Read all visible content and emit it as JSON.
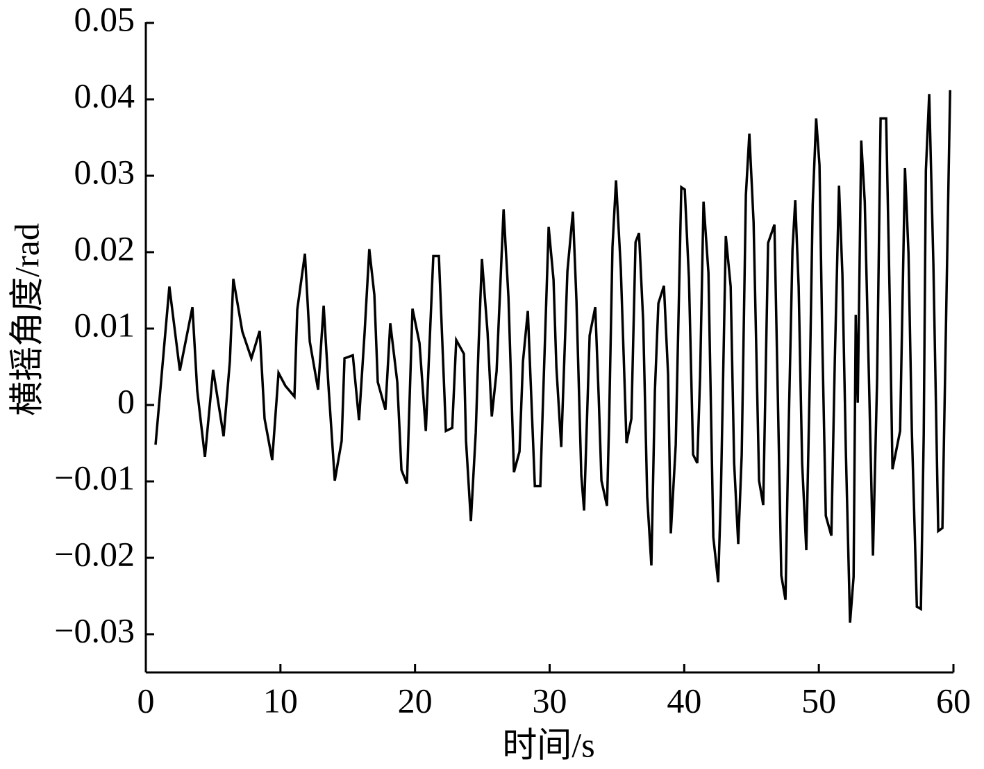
{
  "chart_data": {
    "type": "line",
    "xlabel": "时间/s",
    "ylabel": "横摇角度/rad",
    "color": "#000000",
    "xlim": [
      0,
      60
    ],
    "xticks": [
      0,
      10,
      20,
      30,
      40,
      50,
      60
    ],
    "ylim": [
      -0.035,
      0.05
    ],
    "yticks": [
      {
        "value": -0.03,
        "label": "−0.03"
      },
      {
        "value": -0.02,
        "label": "−0.02"
      },
      {
        "value": -0.01,
        "label": "−0.01"
      },
      0,
      0.01,
      0.02,
      0.03,
      0.04,
      0.05
    ],
    "x": [
      0.72,
      1.75,
      2.53,
      3.46,
      3.82,
      4.39,
      5.0,
      5.78,
      6.24,
      6.5,
      7.17,
      7.84,
      8.46,
      8.82,
      9.39,
      9.86,
      10.37,
      11.04,
      11.25,
      11.82,
      12.18,
      12.8,
      13.21,
      13.57,
      14.04,
      14.55,
      14.76,
      15.38,
      15.84,
      16.25,
      16.6,
      16.98,
      17.23,
      17.8,
      18.16,
      18.68,
      18.99,
      19.4,
      19.81,
      20.33,
      20.8,
      21.36,
      21.77,
      22.29,
      22.76,
      23.06,
      23.63,
      23.79,
      24.15,
      24.51,
      24.72,
      24.97,
      25.39,
      25.7,
      26.06,
      26.58,
      26.94,
      27.35,
      27.76,
      28.02,
      28.38,
      28.9,
      29.31,
      29.51,
      29.93,
      30.29,
      30.5,
      30.86,
      31.32,
      31.73,
      31.99,
      32.35,
      32.56,
      32.97,
      33.39,
      33.64,
      33.85,
      34.26,
      34.42,
      34.67,
      34.93,
      35.29,
      35.5,
      35.71,
      36.07,
      36.38,
      36.64,
      36.95,
      37.25,
      37.56,
      37.82,
      38.08,
      38.49,
      38.8,
      39.0,
      39.37,
      39.78,
      40.04,
      40.35,
      40.66,
      40.97,
      41.18,
      41.43,
      41.8,
      42.16,
      42.52,
      42.72,
      43.09,
      43.45,
      43.71,
      44.01,
      44.27,
      44.58,
      44.84,
      45.15,
      45.56,
      45.87,
      46.23,
      46.7,
      46.96,
      47.21,
      47.52,
      47.73,
      48.04,
      48.25,
      48.5,
      48.76,
      49.07,
      49.33,
      49.54,
      49.8,
      50.05,
      50.26,
      50.52,
      50.93,
      51.19,
      51.5,
      51.75,
      52.01,
      52.32,
      52.58,
      52.74,
      52.89,
      53.15,
      53.41,
      53.72,
      54.02,
      54.33,
      54.59,
      55.0,
      55.26,
      55.47,
      56.04,
      56.4,
      56.66,
      56.91,
      57.28,
      57.58,
      57.79,
      57.95,
      58.2,
      58.51,
      58.87,
      59.18,
      59.75
    ],
    "values": [
      -0.0052,
      0.0155,
      0.0045,
      0.0128,
      0.0019,
      -0.0068,
      0.0046,
      -0.0041,
      0.0057,
      0.0165,
      0.0096,
      0.0061,
      0.0097,
      -0.0018,
      -0.0072,
      0.0042,
      0.0025,
      0.0011,
      0.0125,
      0.0198,
      0.0083,
      0.002,
      0.013,
      0.0025,
      -0.0099,
      -0.0047,
      0.0061,
      0.0065,
      -0.002,
      0.0094,
      0.0204,
      0.0144,
      0.003,
      -0.0006,
      0.0107,
      0.003,
      -0.0085,
      -0.0103,
      0.0126,
      0.0081,
      -0.0034,
      0.0195,
      0.0195,
      -0.0034,
      -0.003,
      0.0085,
      0.0067,
      -0.0047,
      -0.0152,
      -0.0036,
      0.0078,
      0.0191,
      0.0095,
      -0.0015,
      0.0044,
      0.0256,
      0.0141,
      -0.0088,
      -0.0061,
      0.0057,
      0.0123,
      -0.0106,
      -0.0106,
      0.0007,
      0.0233,
      0.0164,
      0.005,
      -0.0055,
      0.0175,
      0.0253,
      0.0137,
      -0.0092,
      -0.0138,
      0.0091,
      0.0128,
      0.0012,
      -0.0099,
      -0.0132,
      -0.0019,
      0.0207,
      0.0294,
      0.0178,
      0.0065,
      -0.005,
      -0.0018,
      0.0213,
      0.0225,
      0.011,
      -0.012,
      -0.021,
      0.0019,
      0.0133,
      0.0156,
      0.0039,
      -0.0168,
      -0.0052,
      0.0285,
      0.0282,
      0.0166,
      -0.0065,
      -0.0076,
      0.0038,
      0.0266,
      0.0173,
      -0.0173,
      -0.0232,
      -0.0117,
      0.0221,
      0.0155,
      -0.0076,
      -0.0182,
      -0.0065,
      0.0275,
      0.0355,
      0.0239,
      -0.0099,
      -0.0131,
      0.0212,
      0.0236,
      0.0007,
      -0.0223,
      -0.0255,
      -0.0052,
      0.0203,
      0.0268,
      0.0155,
      -0.0076,
      -0.019,
      0.0035,
      0.0262,
      0.0375,
      0.0314,
      0.0083,
      -0.0145,
      -0.0171,
      0.006,
      0.0287,
      0.0171,
      -0.0062,
      -0.0285,
      -0.0225,
      0.0118,
      0.0003,
      0.0346,
      0.0266,
      0.0036,
      -0.0197,
      0.0035,
      0.0375,
      0.0375,
      0.0145,
      -0.0084,
      -0.0034,
      0.031,
      0.0198,
      -0.0034,
      -0.0264,
      -0.0267,
      -0.0039,
      0.0307,
      0.0407,
      0.0185,
      -0.0165,
      -0.0161,
      0.0412
    ]
  }
}
